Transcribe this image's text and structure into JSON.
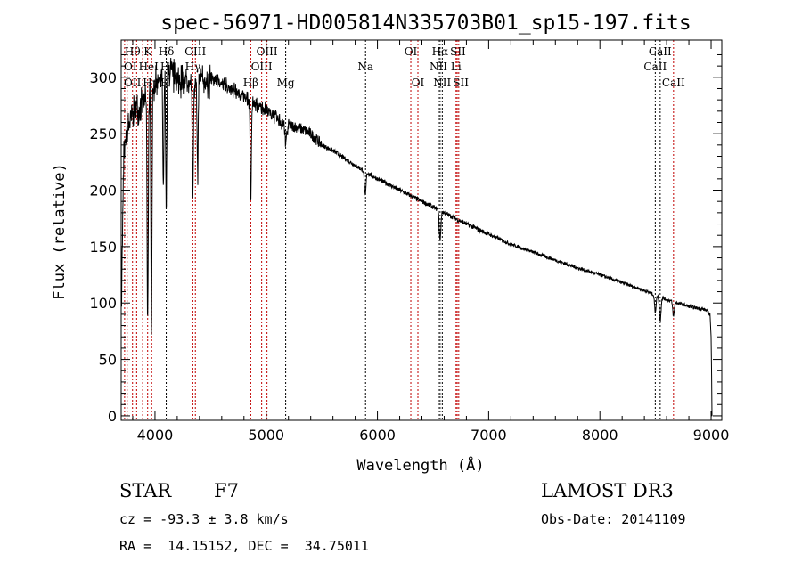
{
  "chart_data": {
    "type": "line",
    "title": "spec-56971-HD005814N335703B01_sp15-197.fits",
    "xlabel": "Wavelength (Å)",
    "ylabel": "Flux (relative)",
    "xlim": [
      3696,
      9096
    ],
    "ylim": [
      -4,
      333
    ],
    "xticks": [
      4000,
      5000,
      6000,
      7000,
      8000,
      9000
    ],
    "yticks": [
      0,
      50,
      100,
      150,
      200,
      250,
      300
    ],
    "grid": false,
    "continuum": [
      [
        3700,
        120
      ],
      [
        3720,
        240
      ],
      [
        3760,
        260
      ],
      [
        3800,
        275
      ],
      [
        3900,
        285
      ],
      [
        4000,
        300
      ],
      [
        4100,
        312
      ],
      [
        4200,
        305
      ],
      [
        4300,
        300
      ],
      [
        4400,
        305
      ],
      [
        4500,
        302
      ],
      [
        4600,
        298
      ],
      [
        4700,
        292
      ],
      [
        4800,
        286
      ],
      [
        4900,
        278
      ],
      [
        5000,
        275
      ],
      [
        5100,
        266
      ],
      [
        5200,
        258
      ],
      [
        5300,
        255
      ],
      [
        5400,
        250
      ],
      [
        5500,
        240
      ],
      [
        5600,
        235
      ],
      [
        5800,
        222
      ],
      [
        6000,
        210
      ],
      [
        6200,
        200
      ],
      [
        6400,
        190
      ],
      [
        6600,
        180
      ],
      [
        6800,
        170
      ],
      [
        7000,
        161
      ],
      [
        7200,
        152
      ],
      [
        7400,
        145
      ],
      [
        7600,
        138
      ],
      [
        7800,
        131
      ],
      [
        8000,
        125
      ],
      [
        8200,
        118
      ],
      [
        8400,
        111
      ],
      [
        8600,
        103
      ],
      [
        8800,
        97
      ],
      [
        8950,
        94
      ],
      [
        8990,
        90
      ],
      [
        9000,
        70
      ],
      [
        9010,
        0
      ]
    ],
    "absorption": [
      [
        3934,
        80
      ],
      [
        3968,
        80
      ],
      [
        4075,
        200
      ],
      [
        4101,
        190
      ],
      [
        4340,
        200
      ],
      [
        4383,
        210
      ],
      [
        4861,
        185
      ],
      [
        5175,
        245
      ],
      [
        5890,
        195
      ],
      [
        6563,
        155
      ],
      [
        8498,
        92
      ],
      [
        8542,
        84
      ],
      [
        8662,
        88
      ]
    ],
    "lines": [
      {
        "wave": 3727,
        "label": "OII",
        "row": 3,
        "color": "#c00000"
      },
      {
        "wave": 3750,
        "label": "OI",
        "row": 2,
        "color": "#c00000"
      },
      {
        "wave": 3798,
        "label": "Hθ",
        "row": 1,
        "color": "#c00000"
      },
      {
        "wave": 3835,
        "label": "Hη",
        "row": 3,
        "color": "#c00000"
      },
      {
        "wave": 3889,
        "label": "HeI",
        "row": 2,
        "color": "#c00000"
      },
      {
        "wave": 3934,
        "label": "K",
        "row": 1,
        "color": "#c00000"
      },
      {
        "wave": 3968,
        "label": "H",
        "row": 3,
        "color": "#c00000"
      },
      {
        "wave": 3970,
        "label": "Hε",
        "row": 2,
        "color": "#c00000"
      },
      {
        "wave": 4101,
        "label": "Hδ",
        "row": 1,
        "color": "#000000"
      },
      {
        "wave": 4340,
        "label": "Hγ",
        "row": 2,
        "color": "#c00000"
      },
      {
        "wave": 4363,
        "label": "OIII",
        "row": 1,
        "color": "#c00000"
      },
      {
        "wave": 4861,
        "label": "Hβ",
        "row": 3,
        "color": "#c00000"
      },
      {
        "wave": 4959,
        "label": "OIII",
        "row": 2,
        "color": "#c00000"
      },
      {
        "wave": 5007,
        "label": "OIII",
        "row": 1,
        "color": "#c00000"
      },
      {
        "wave": 5175,
        "label": "Mg",
        "row": 3,
        "color": "#000000"
      },
      {
        "wave": 5893,
        "label": "Na",
        "row": 2,
        "color": "#000000"
      },
      {
        "wave": 6300,
        "label": "OI",
        "row": 1,
        "color": "#c00000"
      },
      {
        "wave": 6364,
        "label": "OI",
        "row": 3,
        "color": "#c00000"
      },
      {
        "wave": 6548,
        "label": "NII",
        "row": 2,
        "color": "#000000"
      },
      {
        "wave": 6563,
        "label": "Hα",
        "row": 1,
        "color": "#000000"
      },
      {
        "wave": 6583,
        "label": "NII",
        "row": 3,
        "color": "#000000"
      },
      {
        "wave": 6707,
        "label": "Li",
        "row": 2,
        "color": "#c00000"
      },
      {
        "wave": 6717,
        "label": "SII",
        "row": 1,
        "color": "#c00000"
      },
      {
        "wave": 6731,
        "label": "SII",
        "row": 3,
        "color": "#c00000"
      },
      {
        "wave": 8498,
        "label": "CaII",
        "row": 2,
        "color": "#000000"
      },
      {
        "wave": 8542,
        "label": "CaII",
        "row": 1,
        "color": "#000000"
      },
      {
        "wave": 8662,
        "label": "CaII",
        "row": 3,
        "color": "#c00000"
      }
    ]
  },
  "info": {
    "class_label": "STAR",
    "subclass": "F7",
    "survey": "LAMOST DR3",
    "cz": "cz = -93.3 ± 3.8 km/s",
    "obs_date": "Obs-Date: 20141109",
    "coords": "RA =  14.15152, DEC =  34.75011"
  }
}
